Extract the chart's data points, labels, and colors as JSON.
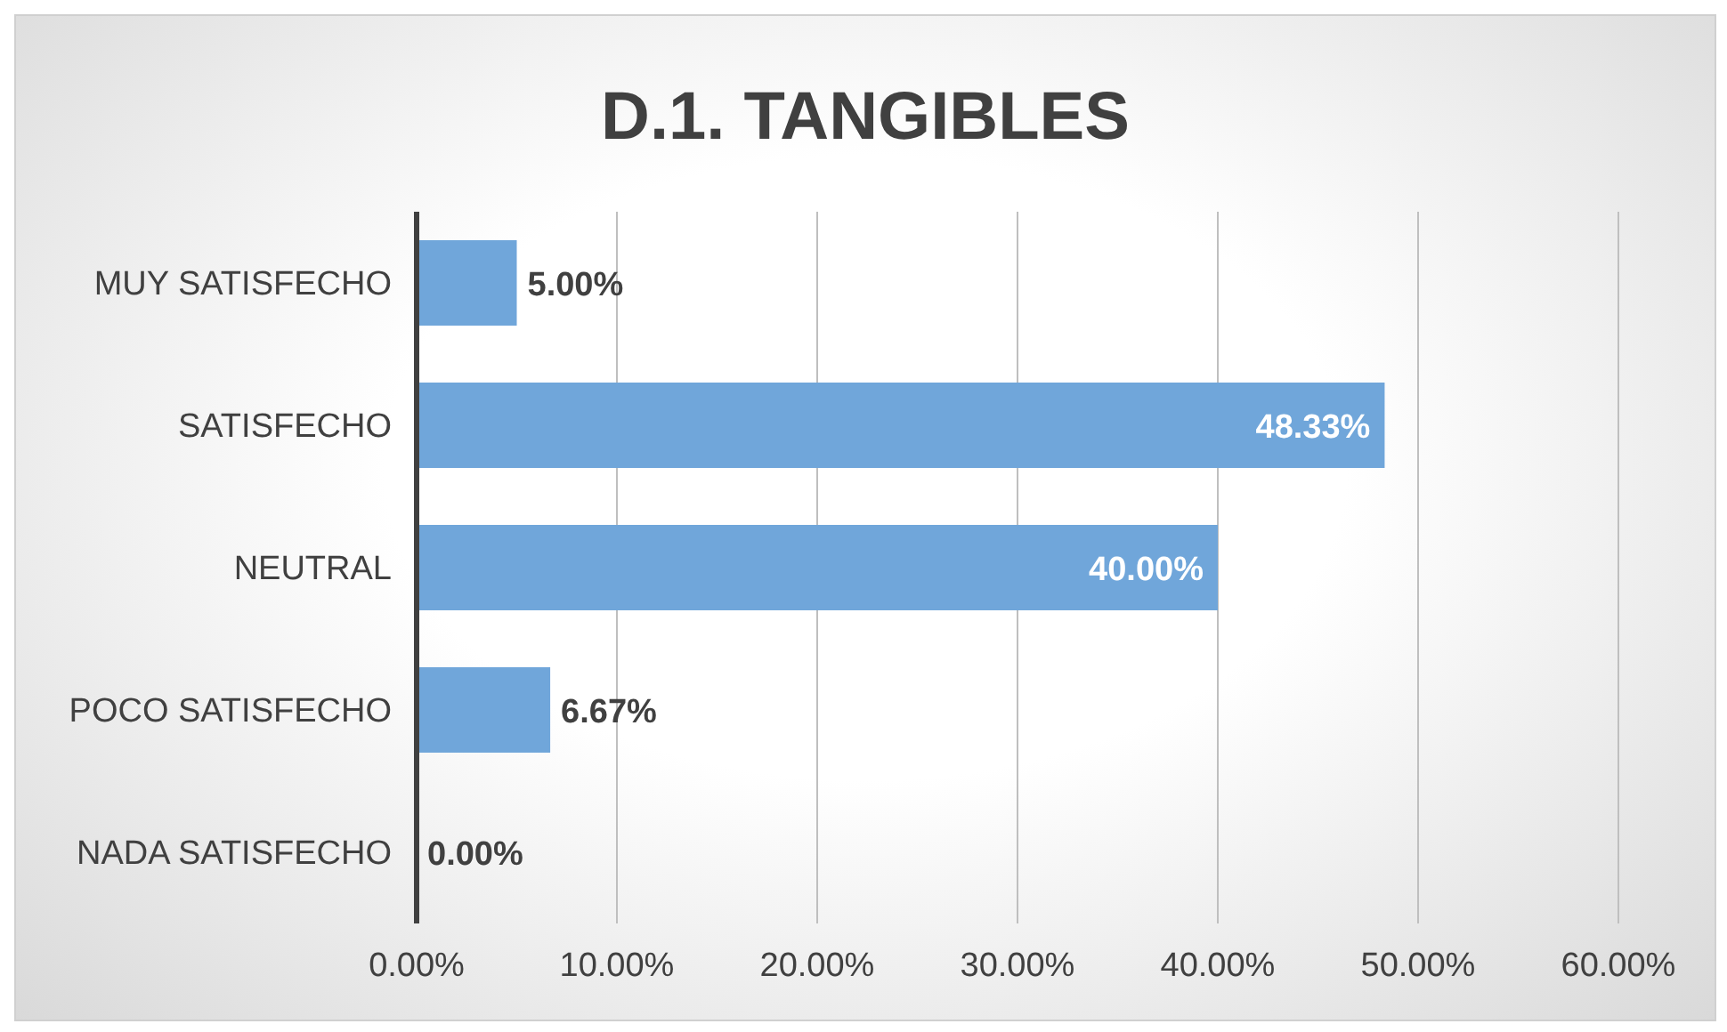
{
  "chart_data": {
    "type": "bar",
    "orientation": "horizontal",
    "title": "D.1. TANGIBLES",
    "categories": [
      "MUY SATISFECHO",
      "SATISFECHO",
      "NEUTRAL",
      "POCO SATISFECHO",
      "NADA SATISFECHO"
    ],
    "values": [
      5,
      48.33,
      40,
      6.67,
      0
    ],
    "color": "#70a6da",
    "value_labels": [
      "5.00%",
      "48.33%",
      "40.00%",
      "6.67%",
      "0.00%"
    ],
    "xlim": [
      0,
      60
    ],
    "xticks": [
      {
        "value": 0,
        "label": "0.00%"
      },
      {
        "value": 10,
        "label": "10.00%"
      },
      {
        "value": 20,
        "label": "20.00%"
      },
      {
        "value": 30,
        "label": "30.00%"
      },
      {
        "value": 40,
        "label": "40.00%"
      },
      {
        "value": 50,
        "label": "50.00%"
      },
      {
        "value": 60,
        "label": "60.00%"
      }
    ],
    "grid": "x",
    "legend": false
  }
}
